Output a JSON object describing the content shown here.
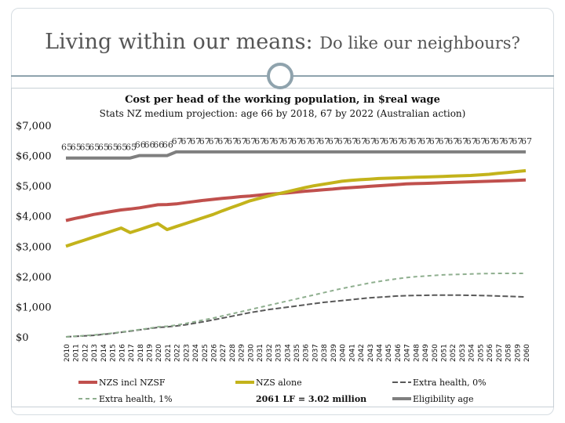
{
  "slide": {
    "title_main": "Living within our means:",
    "title_sub": "Do like our neighbours?"
  },
  "chart_data": {
    "type": "line",
    "title": "Cost per head of the working population, in $real wage",
    "subtitle": "Stats NZ medium projection: age 66 by 2018, 67 by 2022 (Australian action)",
    "xlabel": "",
    "ylabel": "",
    "ylim": [
      0,
      7000
    ],
    "y_ticks": [
      "$0",
      "$1,000",
      "$2,000",
      "$3,000",
      "$4,000",
      "$5,000",
      "$6,000",
      "$7,000"
    ],
    "y_tick_values": [
      0,
      1000,
      2000,
      3000,
      4000,
      5000,
      6000,
      7000
    ],
    "categories": [
      "2010",
      "2011",
      "2012",
      "2013",
      "2014",
      "2015",
      "2016",
      "2017",
      "2018",
      "2019",
      "2020",
      "2021",
      "2022",
      "2023",
      "2024",
      "2025",
      "2026",
      "2027",
      "2028",
      "2029",
      "2030",
      "2031",
      "2032",
      "2033",
      "2034",
      "2035",
      "2036",
      "2037",
      "2038",
      "2039",
      "2040",
      "2041",
      "2042",
      "2043",
      "2044",
      "2045",
      "2046",
      "2047",
      "2048",
      "2049",
      "2050",
      "2051",
      "2052",
      "2053",
      "2054",
      "2055",
      "2056",
      "2057",
      "2058",
      "2059",
      "2060"
    ],
    "series": [
      {
        "name": "NZS incl NZSF",
        "color": "#c0504d",
        "dash": "solid",
        "width": 4,
        "values": [
          3850,
          3920,
          3980,
          4050,
          4100,
          4150,
          4200,
          4230,
          4270,
          4320,
          4370,
          4380,
          4400,
          4440,
          4480,
          4520,
          4550,
          4580,
          4610,
          4640,
          4660,
          4690,
          4720,
          4740,
          4760,
          4790,
          4820,
          4840,
          4870,
          4890,
          4920,
          4940,
          4960,
          4980,
          5000,
          5020,
          5040,
          5060,
          5070,
          5080,
          5090,
          5100,
          5110,
          5120,
          5130,
          5140,
          5150,
          5160,
          5170,
          5180,
          5190
        ]
      },
      {
        "name": "NZS alone",
        "color": "#c3b31b",
        "dash": "solid",
        "width": 4,
        "values": [
          3000,
          3100,
          3200,
          3300,
          3400,
          3500,
          3600,
          3450,
          3550,
          3650,
          3750,
          3550,
          3650,
          3750,
          3850,
          3950,
          4050,
          4170,
          4280,
          4390,
          4500,
          4580,
          4660,
          4730,
          4800,
          4870,
          4940,
          5000,
          5050,
          5100,
          5150,
          5180,
          5200,
          5220,
          5240,
          5250,
          5260,
          5270,
          5280,
          5290,
          5300,
          5310,
          5320,
          5330,
          5340,
          5360,
          5380,
          5410,
          5440,
          5470,
          5500
        ]
      },
      {
        "name": "Extra health, 0%",
        "color": "#595959",
        "dash": "longdash",
        "width": 2,
        "values": [
          0,
          15,
          30,
          50,
          80,
          110,
          150,
          190,
          230,
          270,
          310,
          330,
          360,
          400,
          450,
          500,
          560,
          620,
          680,
          740,
          800,
          850,
          900,
          940,
          980,
          1020,
          1060,
          1100,
          1140,
          1170,
          1200,
          1230,
          1260,
          1290,
          1310,
          1330,
          1350,
          1360,
          1370,
          1375,
          1380,
          1380,
          1380,
          1378,
          1375,
          1370,
          1360,
          1350,
          1340,
          1330,
          1320
        ]
      },
      {
        "name": "Extra health, 1%",
        "color": "#8faf8f",
        "dash": "shortdash",
        "width": 2,
        "values": [
          0,
          20,
          40,
          60,
          90,
          120,
          160,
          200,
          240,
          280,
          330,
          350,
          390,
          440,
          500,
          560,
          620,
          690,
          760,
          830,
          900,
          970,
          1040,
          1110,
          1180,
          1250,
          1320,
          1390,
          1460,
          1530,
          1600,
          1660,
          1720,
          1780,
          1830,
          1880,
          1920,
          1960,
          1990,
          2010,
          2030,
          2050,
          2060,
          2070,
          2080,
          2090,
          2095,
          2100,
          2100,
          2100,
          2100
        ]
      },
      {
        "name": "Eligibility age",
        "color": "#7f7f7f",
        "dash": "solid",
        "width": 4,
        "values": [
          5920,
          5920,
          5920,
          5920,
          5920,
          5920,
          5920,
          5920,
          6000,
          6000,
          6000,
          6000,
          6120,
          6120,
          6120,
          6120,
          6120,
          6120,
          6120,
          6120,
          6120,
          6120,
          6120,
          6120,
          6120,
          6120,
          6120,
          6120,
          6120,
          6120,
          6120,
          6120,
          6120,
          6120,
          6120,
          6120,
          6120,
          6120,
          6120,
          6120,
          6120,
          6120,
          6120,
          6120,
          6120,
          6120,
          6120,
          6120,
          6120,
          6120,
          6120
        ]
      }
    ],
    "eligibility_age_labels": [
      "65",
      "65",
      "65",
      "65",
      "65",
      "65",
      "65",
      "65",
      "66",
      "66",
      "66",
      "66",
      "67",
      "67",
      "67",
      "67",
      "67",
      "67",
      "67",
      "67",
      "67",
      "67",
      "67",
      "67",
      "67",
      "67",
      "67",
      "67",
      "67",
      "67",
      "67",
      "67",
      "67",
      "67",
      "67",
      "67",
      "67",
      "67",
      "67",
      "67",
      "67",
      "67",
      "67",
      "67",
      "67",
      "67",
      "67",
      "67",
      "67",
      "67",
      "67"
    ],
    "annotation": "2061 LF = 3.02 million",
    "legend_position": "bottom"
  }
}
